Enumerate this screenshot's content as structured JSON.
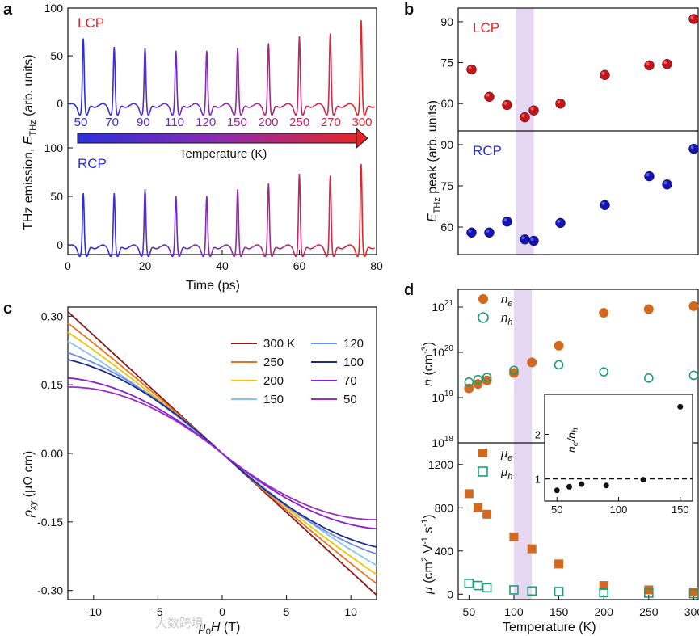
{
  "colors": {
    "hot": "#e8242b",
    "cold": "#2b2ee0",
    "orange": "#d2691e",
    "green": "#1f9e74",
    "band": "#e6d7f3"
  },
  "chart_data": [
    {
      "panel": "a",
      "type": "line",
      "title": "",
      "xlabel": "Time (ps)",
      "ylabel": "THz emission, E_THz (arb. units)",
      "xlim": [
        0,
        80
      ],
      "xticks": [
        0,
        20,
        40,
        60,
        80
      ],
      "top": {
        "label": "LCP",
        "ylim": [
          -10,
          100
        ],
        "yticks": [
          0,
          50,
          100
        ]
      },
      "bottom": {
        "label": "RCP",
        "ylim": [
          -10,
          100
        ],
        "yticks": [
          0,
          50,
          100
        ]
      },
      "temperature_labels": [
        "50",
        "70",
        "90",
        "110",
        "120",
        "150",
        "200",
        "250",
        "270",
        "300"
      ],
      "arrow_label": "Temperature (K)",
      "pulse_times": [
        4,
        12,
        20,
        28,
        36,
        44,
        52,
        60,
        68,
        76
      ],
      "lcp_peaks": [
        73,
        64,
        63,
        60,
        60,
        63,
        68,
        75,
        78,
        92
      ],
      "rcp_peaks": [
        58,
        58,
        62,
        55,
        55,
        62,
        68,
        78,
        76,
        88
      ]
    },
    {
      "panel": "b",
      "type": "scatter",
      "xlabel": "Temperature (K)",
      "ylabel": "E_THz peak (arb. units)",
      "xlim": [
        35,
        305
      ],
      "shaded_x": [
        100,
        120
      ],
      "top": {
        "label": "LCP",
        "ylim": [
          50,
          95
        ],
        "yticks": [
          60,
          75,
          90
        ],
        "x": [
          50,
          70,
          90,
          110,
          120,
          150,
          200,
          250,
          270,
          300
        ],
        "y": [
          72.5,
          62.5,
          59.5,
          55,
          57.5,
          60,
          70.5,
          74,
          74.5,
          91
        ]
      },
      "bottom": {
        "label": "RCP",
        "ylim": [
          50,
          95
        ],
        "yticks": [
          60,
          75,
          90
        ],
        "x": [
          50,
          70,
          90,
          110,
          120,
          150,
          200,
          250,
          270,
          300
        ],
        "y": [
          58,
          58,
          62,
          55.5,
          55,
          61.5,
          68,
          78.5,
          75.5,
          88.5
        ]
      }
    },
    {
      "panel": "c",
      "type": "line",
      "xlabel": "μ0H (T)",
      "ylabel": "ρxy (μΩ cm)",
      "xlim": [
        -12,
        12
      ],
      "ylim": [
        -0.32,
        0.32
      ],
      "xticks": [
        -10,
        -5,
        0,
        5,
        10
      ],
      "yticks": [
        -0.3,
        -0.15,
        0,
        0.15,
        0.3
      ],
      "ytick_labels": [
        "-0.30",
        "-0.15",
        "0.00",
        "0.15",
        "0.30"
      ],
      "series": [
        {
          "name": "300 K",
          "color": "#8b1a1a",
          "end": 0.31,
          "shape": 0.0
        },
        {
          "name": "250",
          "color": "#e8731e",
          "end": 0.285,
          "shape": 0.05
        },
        {
          "name": "200",
          "color": "#f2c400",
          "end": 0.265,
          "shape": 0.08
        },
        {
          "name": "150",
          "color": "#88c5ef",
          "end": 0.245,
          "shape": 0.12
        },
        {
          "name": "120",
          "color": "#6b8de6",
          "end": 0.22,
          "shape": 0.28
        },
        {
          "name": "100",
          "color": "#1f2a90",
          "end": 0.205,
          "shape": 0.35
        },
        {
          "name": "70",
          "color": "#8a1fd0",
          "end": 0.165,
          "shape": 0.45
        },
        {
          "name": "50",
          "color": "#9a2cc8",
          "end": 0.145,
          "shape": 0.55
        }
      ]
    },
    {
      "panel": "d",
      "type": "scatter",
      "xlabel": "Temperature (K)",
      "xlim": [
        38,
        305
      ],
      "shaded_x": [
        100,
        120
      ],
      "xticks": [
        50,
        100,
        150,
        200,
        250,
        300
      ],
      "top": {
        "ylabel": "n (cm-3)",
        "yticks_exp": [
          "10^18",
          "10^19",
          "10^20",
          "10^21"
        ],
        "ne": {
          "label": "ne",
          "x": [
            50,
            60,
            70,
            100,
            120,
            150,
            200,
            250,
            300
          ],
          "y": [
            1.6e+19,
            2e+19,
            2.4e+19,
            3.5e+19,
            6e+19,
            1.4e+20,
            7.5e+20,
            9e+20,
            1.05e+21
          ]
        },
        "nh": {
          "label": "nh",
          "x": [
            50,
            60,
            70,
            100,
            150,
            200,
            250,
            300
          ],
          "y": [
            2.2e+19,
            2.5e+19,
            2.8e+19,
            4e+19,
            5.3e+19,
            3.7e+19,
            2.7e+19,
            3.1e+19
          ]
        }
      },
      "bottom": {
        "ylabel": "μ (cm2 V-1 s-1)",
        "ylim": [
          -50,
          1400
        ],
        "yticks": [
          0,
          400,
          800,
          1200
        ],
        "mue": {
          "label": "μe",
          "x": [
            50,
            60,
            70,
            100,
            120,
            150,
            200,
            250,
            300
          ],
          "y": [
            930,
            800,
            740,
            530,
            420,
            280,
            80,
            40,
            20
          ]
        },
        "muh": {
          "label": "μh",
          "x": [
            50,
            60,
            70,
            100,
            120,
            150,
            200,
            250,
            300
          ],
          "y": [
            100,
            80,
            60,
            40,
            30,
            25,
            15,
            10,
            5
          ]
        }
      },
      "inset": {
        "ylabel": "ne/nh",
        "xlim": [
          40,
          160
        ],
        "ylim": [
          0.5,
          2.9
        ],
        "xticks": [
          50,
          100,
          150
        ],
        "yticks": [
          1,
          2
        ],
        "x": [
          50,
          60,
          70,
          90,
          120,
          150
        ],
        "y": [
          0.74,
          0.82,
          0.88,
          0.85,
          0.98,
          2.62
        ],
        "reference": 1
      }
    }
  ],
  "watermark": "大数跨境"
}
